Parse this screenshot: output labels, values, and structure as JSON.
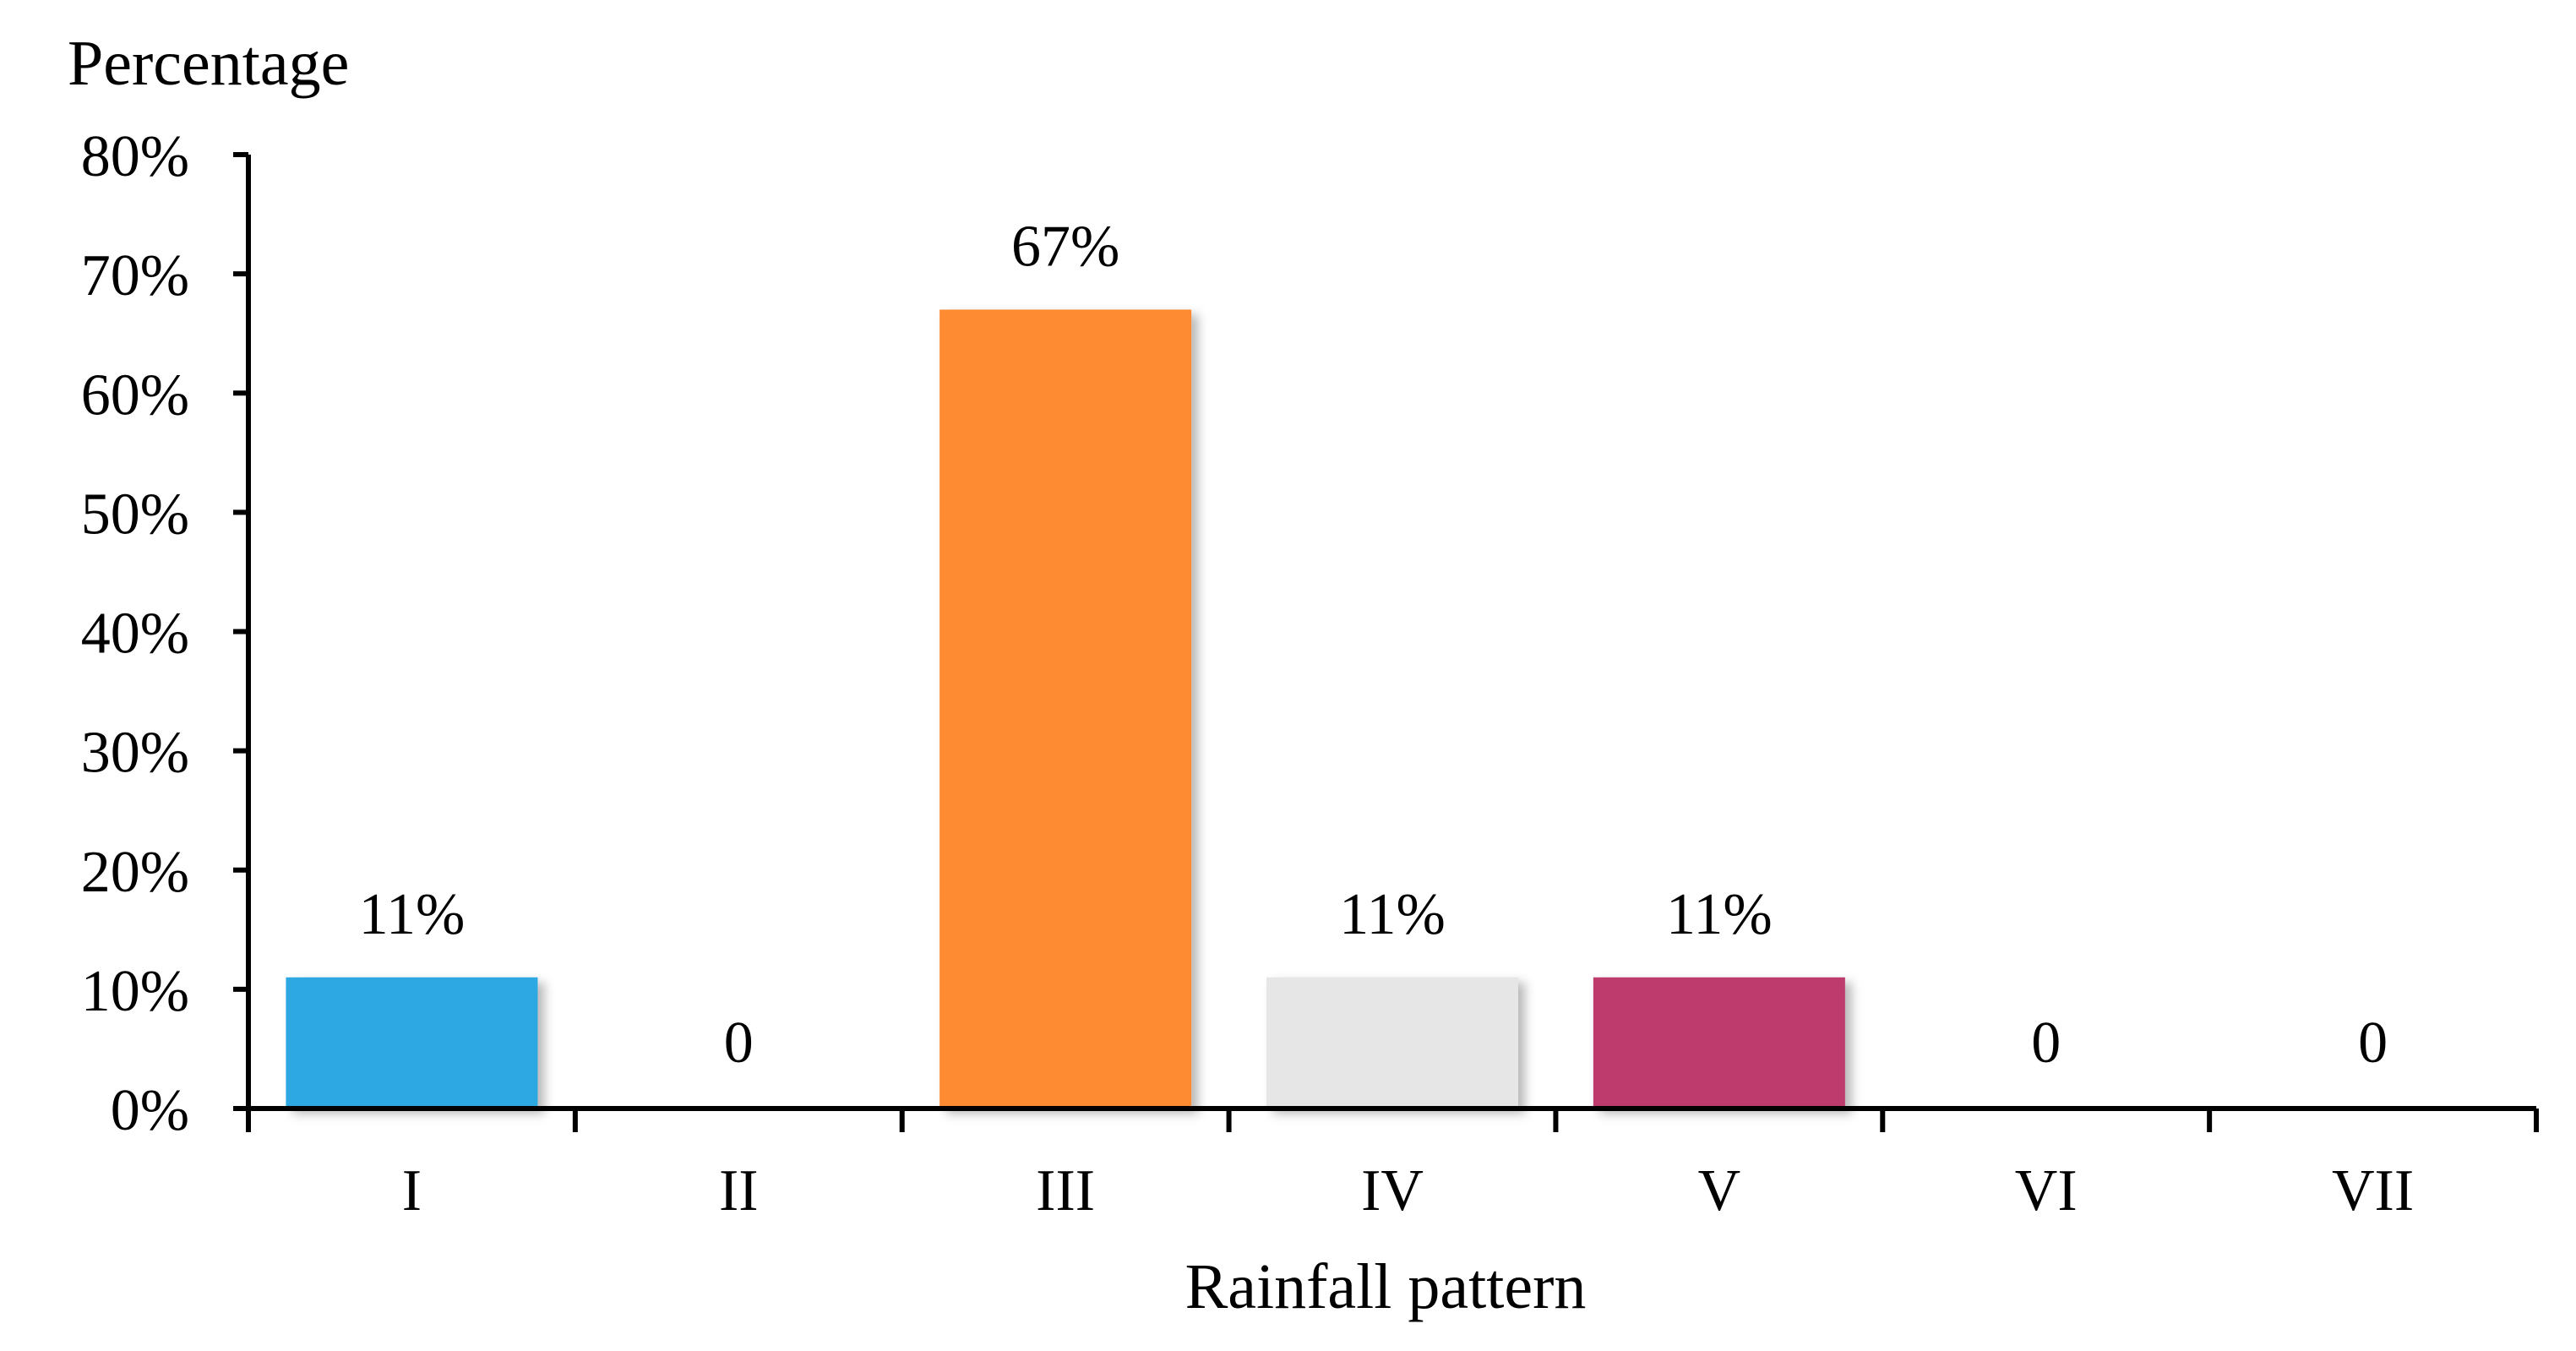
{
  "chart_data": {
    "type": "bar",
    "ylabel": "Percentage",
    "xlabel": "Rainfall pattern",
    "categories": [
      "I",
      "II",
      "III",
      "IV",
      "V",
      "VI",
      "VII"
    ],
    "values": [
      11,
      0,
      67,
      11,
      11,
      0,
      0
    ],
    "data_labels": [
      "11%",
      "0",
      "67%",
      "11%",
      "11%",
      "0",
      "0"
    ],
    "bar_colors": [
      "#2ea8e3",
      "#ffffff",
      "#fe8a31",
      "#e6e6e6",
      "#bd3a6d",
      "#ffffff",
      "#ffffff"
    ],
    "yticks": [
      "0%",
      "10%",
      "20%",
      "30%",
      "40%",
      "50%",
      "60%",
      "70%",
      "80%"
    ],
    "ytick_values": [
      0,
      10,
      20,
      30,
      40,
      50,
      60,
      70,
      80
    ],
    "ylim": [
      0,
      80
    ],
    "grid": false,
    "legend": "none"
  }
}
